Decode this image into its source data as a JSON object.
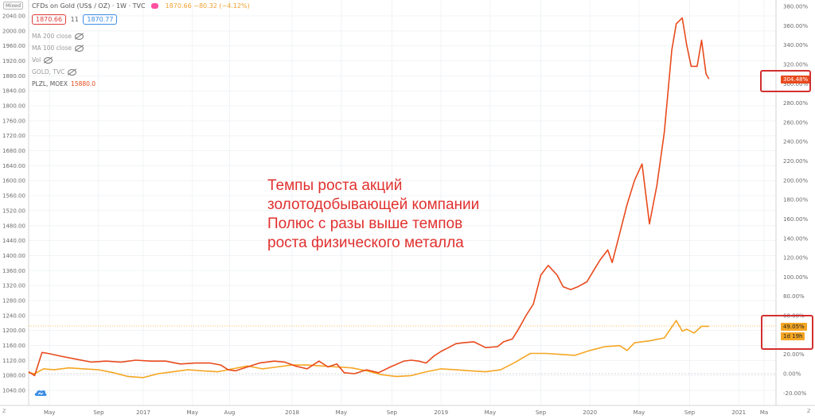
{
  "header": {
    "symbol": "CFDs on Gold (US$ / OZ) · 1W · TVC",
    "change": "1870.66 −80.32 (−4.12%)",
    "price_sell": "1870.66",
    "spread": "11",
    "price_buy": "1870.77",
    "scale_mode": "Mixed"
  },
  "studies": [
    {
      "label": "MA 200 close"
    },
    {
      "label": "MA 100 close"
    },
    {
      "label": "Vol"
    },
    {
      "label": "GOLD, TVC"
    }
  ],
  "plzl_legend": {
    "name": "PLZL, MOEX",
    "value": "15880.0"
  },
  "annotation": [
    "Темпы роста акций",
    "золотодобывающей компании",
    "Полюс с разы выше темпов",
    "роста физического металла"
  ],
  "tags": {
    "plzl_pct": "304.48%",
    "gold_pct": "49.05%",
    "countdown": "1d 19h"
  },
  "bottom_buttons": {
    "left": "Z",
    "right": "Z"
  },
  "colors": {
    "plzl": "#e84a1c",
    "gold": "#f5a623",
    "highlight": "#d32f2f"
  },
  "chart_data": {
    "type": "line",
    "left_axis": {
      "ticks": [
        2040,
        2000,
        1960,
        1920,
        1880,
        1840,
        1800,
        1760,
        1720,
        1680,
        1640,
        1600,
        1560,
        1520,
        1480,
        1440,
        1400,
        1360,
        1320,
        1280,
        1240,
        1200,
        1160,
        1120,
        1080,
        1040
      ],
      "labels": [
        "2040.00",
        "2000.00",
        "1960.00",
        "1920.00",
        "1880.00",
        "1840.00",
        "1800.00",
        "1760.00",
        "1720.00",
        "1680.00",
        "1640.00",
        "1600.00",
        "1560.00",
        "1520.00",
        "1480.00",
        "1440.00",
        "1400.00",
        "1360.00",
        "1320.00",
        "1280.00",
        "1240.00",
        "1200.00",
        "1160.00",
        "1120.00",
        "1080.00",
        "1040.00"
      ]
    },
    "right_axis": {
      "unit": "%",
      "range": [
        -25,
        390
      ],
      "ticks": [
        380,
        360,
        340,
        320,
        300,
        280,
        260,
        240,
        220,
        200,
        180,
        160,
        140,
        120,
        100,
        80,
        60,
        40,
        20,
        0,
        -20
      ],
      "labels": [
        "380.00%",
        "360.00%",
        "340.00%",
        "320.00%",
        "300.00%",
        "280.00%",
        "260.00%",
        "240.00%",
        "220.00%",
        "200.00%",
        "180.00%",
        "160.00%",
        "140.00%",
        "120.00%",
        "100.00%",
        "80.00%",
        "60.00%",
        "40.00%",
        "20.00%",
        "0.00%",
        "-20.00%"
      ]
    },
    "x_axis": {
      "range": [
        2016.23,
        2021.25
      ],
      "ticks": [
        {
          "t": 2016.37,
          "label": "May"
        },
        {
          "t": 2016.7,
          "label": "Sep"
        },
        {
          "t": 2017.0,
          "label": "2017"
        },
        {
          "t": 2017.33,
          "label": "May"
        },
        {
          "t": 2017.58,
          "label": "Aug"
        },
        {
          "t": 2018.0,
          "label": "2018"
        },
        {
          "t": 2018.33,
          "label": "May"
        },
        {
          "t": 2018.67,
          "label": "Sep"
        },
        {
          "t": 2019.0,
          "label": "2019"
        },
        {
          "t": 2019.33,
          "label": "May"
        },
        {
          "t": 2019.67,
          "label": "Sep"
        },
        {
          "t": 2020.0,
          "label": "2020"
        },
        {
          "t": 2020.33,
          "label": "May"
        },
        {
          "t": 2020.67,
          "label": "Sep"
        },
        {
          "t": 2021.0,
          "label": "2021"
        },
        {
          "t": 2021.17,
          "label": "Ma"
        }
      ]
    },
    "series": [
      {
        "name": "PLZL, MOEX",
        "color": "#e84a1c",
        "unit": "% change",
        "x": [
          2016.23,
          2016.27,
          2016.32,
          2016.36,
          2016.45,
          2016.55,
          2016.65,
          2016.75,
          2016.85,
          2016.95,
          2017.05,
          2017.15,
          2017.25,
          2017.35,
          2017.45,
          2017.52,
          2017.57,
          2017.62,
          2017.7,
          2017.78,
          2017.88,
          2017.95,
          2018.02,
          2018.1,
          2018.18,
          2018.24,
          2018.3,
          2018.35,
          2018.42,
          2018.5,
          2018.58,
          2018.66,
          2018.75,
          2018.8,
          2018.85,
          2018.9,
          2018.95,
          2019.0,
          2019.05,
          2019.1,
          2019.15,
          2019.22,
          2019.3,
          2019.38,
          2019.42,
          2019.48,
          2019.52,
          2019.57,
          2019.62,
          2019.67,
          2019.72,
          2019.78,
          2019.82,
          2019.87,
          2019.92,
          2019.98,
          2020.03,
          2020.07,
          2020.12,
          2020.15,
          2020.2,
          2020.25,
          2020.3,
          2020.35,
          2020.4,
          2020.45,
          2020.5,
          2020.55,
          2020.58,
          2020.62,
          2020.65,
          2020.68,
          2020.72,
          2020.75,
          2020.78,
          2020.8
        ],
        "values": [
          2,
          -2,
          22,
          21,
          18,
          15,
          12,
          13,
          12,
          14,
          13,
          13,
          10,
          11,
          11,
          9,
          4,
          3,
          7,
          11,
          13,
          12,
          8,
          5,
          13,
          7,
          10,
          1,
          0,
          4,
          1,
          7,
          13,
          14,
          13,
          11,
          18,
          23,
          27,
          31,
          32,
          33,
          27,
          28,
          33,
          36,
          46,
          60,
          72,
          102,
          112,
          102,
          90,
          87,
          90,
          95,
          108,
          118,
          128,
          115,
          145,
          175,
          200,
          217,
          155,
          195,
          250,
          335,
          362,
          368,
          340,
          318,
          318,
          345,
          310,
          305
        ]
      },
      {
        "name": "GOLD, TVC",
        "color": "#f5a623",
        "unit": "% change",
        "x": [
          2016.23,
          2016.27,
          2016.33,
          2016.4,
          2016.5,
          2016.6,
          2016.7,
          2016.8,
          2016.9,
          2017.0,
          2017.1,
          2017.2,
          2017.3,
          2017.4,
          2017.5,
          2017.6,
          2017.7,
          2017.8,
          2017.9,
          2018.0,
          2018.1,
          2018.2,
          2018.3,
          2018.4,
          2018.5,
          2018.6,
          2018.7,
          2018.8,
          2018.9,
          2019.0,
          2019.1,
          2019.2,
          2019.3,
          2019.4,
          2019.5,
          2019.6,
          2019.7,
          2019.8,
          2019.9,
          2020.0,
          2020.1,
          2020.2,
          2020.25,
          2020.3,
          2020.4,
          2020.5,
          2020.58,
          2020.62,
          2020.65,
          2020.7,
          2020.75,
          2020.8
        ],
        "values": [
          1,
          0,
          5,
          4,
          6,
          5,
          4,
          1,
          -3,
          -4,
          0,
          2,
          4,
          3,
          2,
          5,
          8,
          5,
          7,
          9,
          9,
          8,
          7,
          6,
          3,
          -1,
          -3,
          -2,
          2,
          5,
          4,
          3,
          2,
          4,
          12,
          21,
          21,
          20,
          19,
          24,
          28,
          29,
          24,
          32,
          34,
          37,
          55,
          44,
          46,
          42,
          49,
          49
        ]
      }
    ]
  }
}
